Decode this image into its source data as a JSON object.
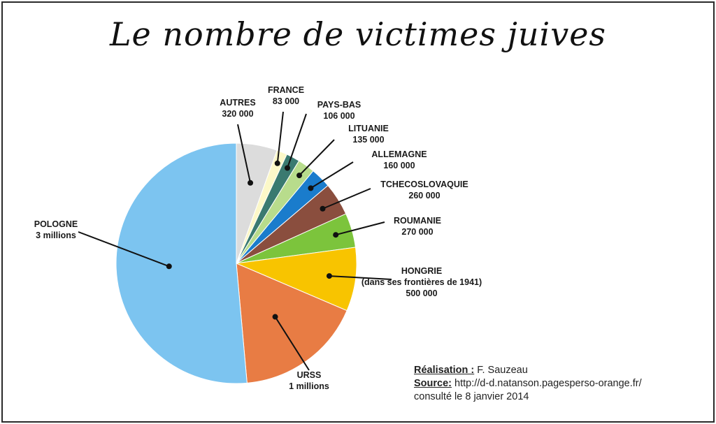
{
  "title": "Le nombre de victimes juives",
  "chart_data": {
    "type": "pie",
    "title": "Le nombre de victimes juives",
    "slices": [
      {
        "name": "AUTRES",
        "value": 320000,
        "label_value": "320 000",
        "color": "#dcdcdc"
      },
      {
        "name": "FRANCE",
        "value": 83000,
        "label_value": "83 000",
        "color": "#fcf8c8"
      },
      {
        "name": "PAYS-BAS",
        "value": 106000,
        "label_value": "106 000",
        "color": "#3a7a70"
      },
      {
        "name": "LITUANIE",
        "value": 135000,
        "label_value": "135 000",
        "color": "#b8dc8c"
      },
      {
        "name": "ALLEMAGNE",
        "value": 160000,
        "label_value": "160 000",
        "color": "#1a7ccc"
      },
      {
        "name": "TCHECOSLOVAQUIE",
        "value": 260000,
        "label_value": "260 000",
        "color": "#8a4e3e"
      },
      {
        "name": "ROUMANIE",
        "value": 270000,
        "label_value": "270 000",
        "color": "#7cc43c"
      },
      {
        "name": "HONGRIE",
        "value": 500000,
        "label_value": "500 000",
        "extra": "(dans ses frontières de 1941)",
        "color": "#f8c400"
      },
      {
        "name": "URSS",
        "value": 1000000,
        "label_value": "1 millions",
        "color": "#e87c44"
      },
      {
        "name": "POLOGNE",
        "value": 3000000,
        "label_value": "3 millions",
        "color": "#7cc4f0"
      }
    ]
  },
  "credits": {
    "realisation_key": "Réalisation :",
    "realisation_val": "F. Sauzeau",
    "source_key": "Source:",
    "source_val": "http://d-d.natanson.pagesperso-orange.fr/",
    "consulted": "consulté le 8 janvier 2014"
  }
}
